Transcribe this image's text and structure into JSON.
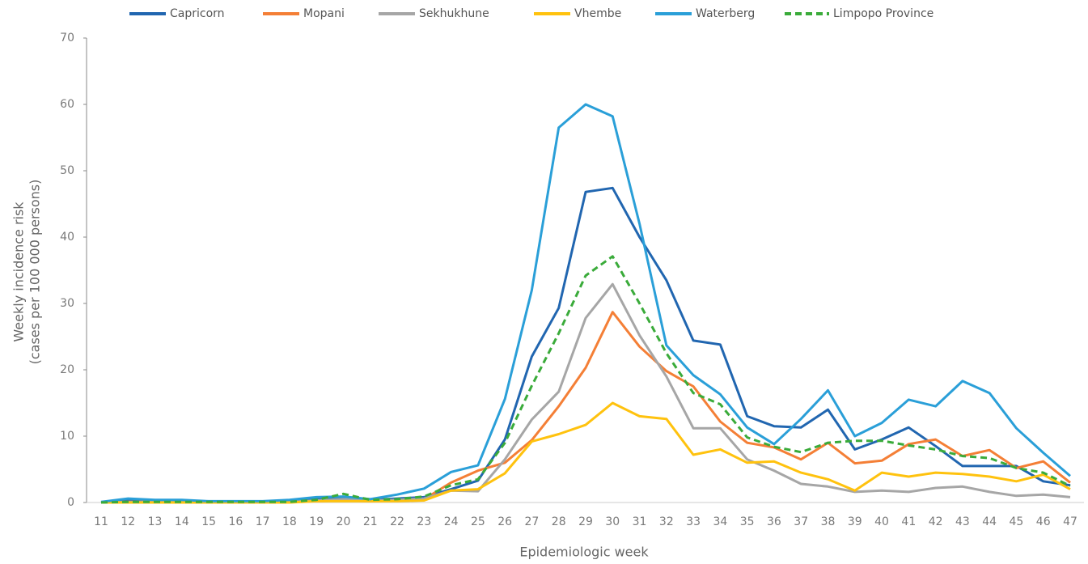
{
  "chart_data": {
    "type": "line",
    "x_label": "Epidemiologic week",
    "y_label": [
      "Weekly incidence risk",
      "(cases  per 100 000 persons)"
    ],
    "categories": [
      "11",
      "12",
      "13",
      "14",
      "15",
      "16",
      "17",
      "18",
      "19",
      "20",
      "21",
      "22",
      "23",
      "24",
      "25",
      "26",
      "27",
      "28",
      "29",
      "30",
      "31",
      "32",
      "33",
      "34",
      "35",
      "36",
      "37",
      "38",
      "39",
      "40",
      "41",
      "42",
      "43",
      "44",
      "45",
      "46",
      "47"
    ],
    "ylim": [
      0,
      70
    ],
    "yticks": [
      0,
      10,
      20,
      30,
      40,
      50,
      60,
      70
    ],
    "grid": false,
    "legend": "top",
    "series": [
      {
        "name": "Capricorn",
        "color": "#2166b0",
        "dashed": false,
        "values": [
          0,
          0.3,
          0.2,
          0.2,
          0.1,
          0.1,
          0.1,
          0.2,
          0.5,
          0.6,
          0.4,
          0.6,
          0.8,
          2,
          3.3,
          9.5,
          22,
          29.3,
          46.8,
          47.4,
          40,
          33.5,
          24.4,
          23.8,
          13,
          11.5,
          11.3,
          14,
          8,
          9.5,
          11.3,
          8.5,
          5.5,
          5.5,
          5.5,
          3.2,
          2.6
        ]
      },
      {
        "name": "Mopani",
        "color": "#f47f36",
        "dashed": false,
        "values": [
          0,
          0.1,
          0.1,
          0.1,
          0.1,
          0.1,
          0.1,
          0.1,
          0.2,
          0.3,
          0.2,
          0.3,
          0.5,
          3,
          4.8,
          6,
          9.4,
          14.5,
          20.3,
          28.7,
          23.5,
          19.8,
          17.5,
          12.2,
          9,
          8.3,
          6.5,
          9,
          5.9,
          6.3,
          8.8,
          9.5,
          7,
          7.9,
          5.2,
          6.2,
          3
        ]
      },
      {
        "name": "Sekhukhune",
        "color": "#a6a6a6",
        "dashed": false,
        "values": [
          0,
          0.1,
          0.1,
          0.1,
          0.1,
          0.1,
          0.1,
          0.1,
          0.3,
          0.5,
          0.3,
          0.4,
          0.6,
          1.8,
          1.7,
          6.5,
          12.5,
          16.7,
          27.8,
          32.9,
          25.2,
          19,
          11.2,
          11.2,
          6.5,
          4.8,
          2.8,
          2.4,
          1.6,
          1.8,
          1.6,
          2.2,
          2.4,
          1.6,
          1,
          1.2,
          0.8
        ]
      },
      {
        "name": "Vhembe",
        "color": "#ffc20e",
        "dashed": false,
        "values": [
          0,
          0,
          0,
          0,
          0,
          0,
          0,
          0,
          0.2,
          0.2,
          0.2,
          0.2,
          0.3,
          1.8,
          2,
          4.4,
          9.2,
          10.3,
          11.7,
          15,
          13,
          12.6,
          7.2,
          8,
          6,
          6.2,
          4.5,
          3.5,
          1.8,
          4.5,
          3.9,
          4.5,
          4.3,
          3.9,
          3.2,
          4.2,
          2
        ]
      },
      {
        "name": "Waterberg",
        "color": "#2a9fd8",
        "dashed": false,
        "values": [
          0.1,
          0.6,
          0.4,
          0.4,
          0.2,
          0.2,
          0.2,
          0.4,
          0.8,
          0.9,
          0.5,
          1.2,
          2.1,
          4.6,
          5.6,
          15.6,
          32,
          56.5,
          60,
          58.2,
          42,
          23.7,
          19.2,
          16.3,
          11.3,
          8.8,
          12.6,
          16.9,
          10,
          12,
          15.5,
          14.5,
          18.3,
          16.5,
          11.2,
          7.5,
          4
        ]
      },
      {
        "name": "Limpopo Province",
        "color": "#3aab3a",
        "dashed": true,
        "values": [
          0,
          0.1,
          0.1,
          0.1,
          0.1,
          0.1,
          0.1,
          0.1,
          0.4,
          1.3,
          0.4,
          0.5,
          0.9,
          2.6,
          3.5,
          9,
          17.6,
          25.5,
          34.2,
          37.1,
          30,
          22.5,
          16.5,
          14.8,
          9.8,
          8.4,
          7.6,
          9,
          9.3,
          9.3,
          8.6,
          8,
          7,
          6.7,
          5.2,
          4.5,
          2.5
        ]
      }
    ]
  }
}
